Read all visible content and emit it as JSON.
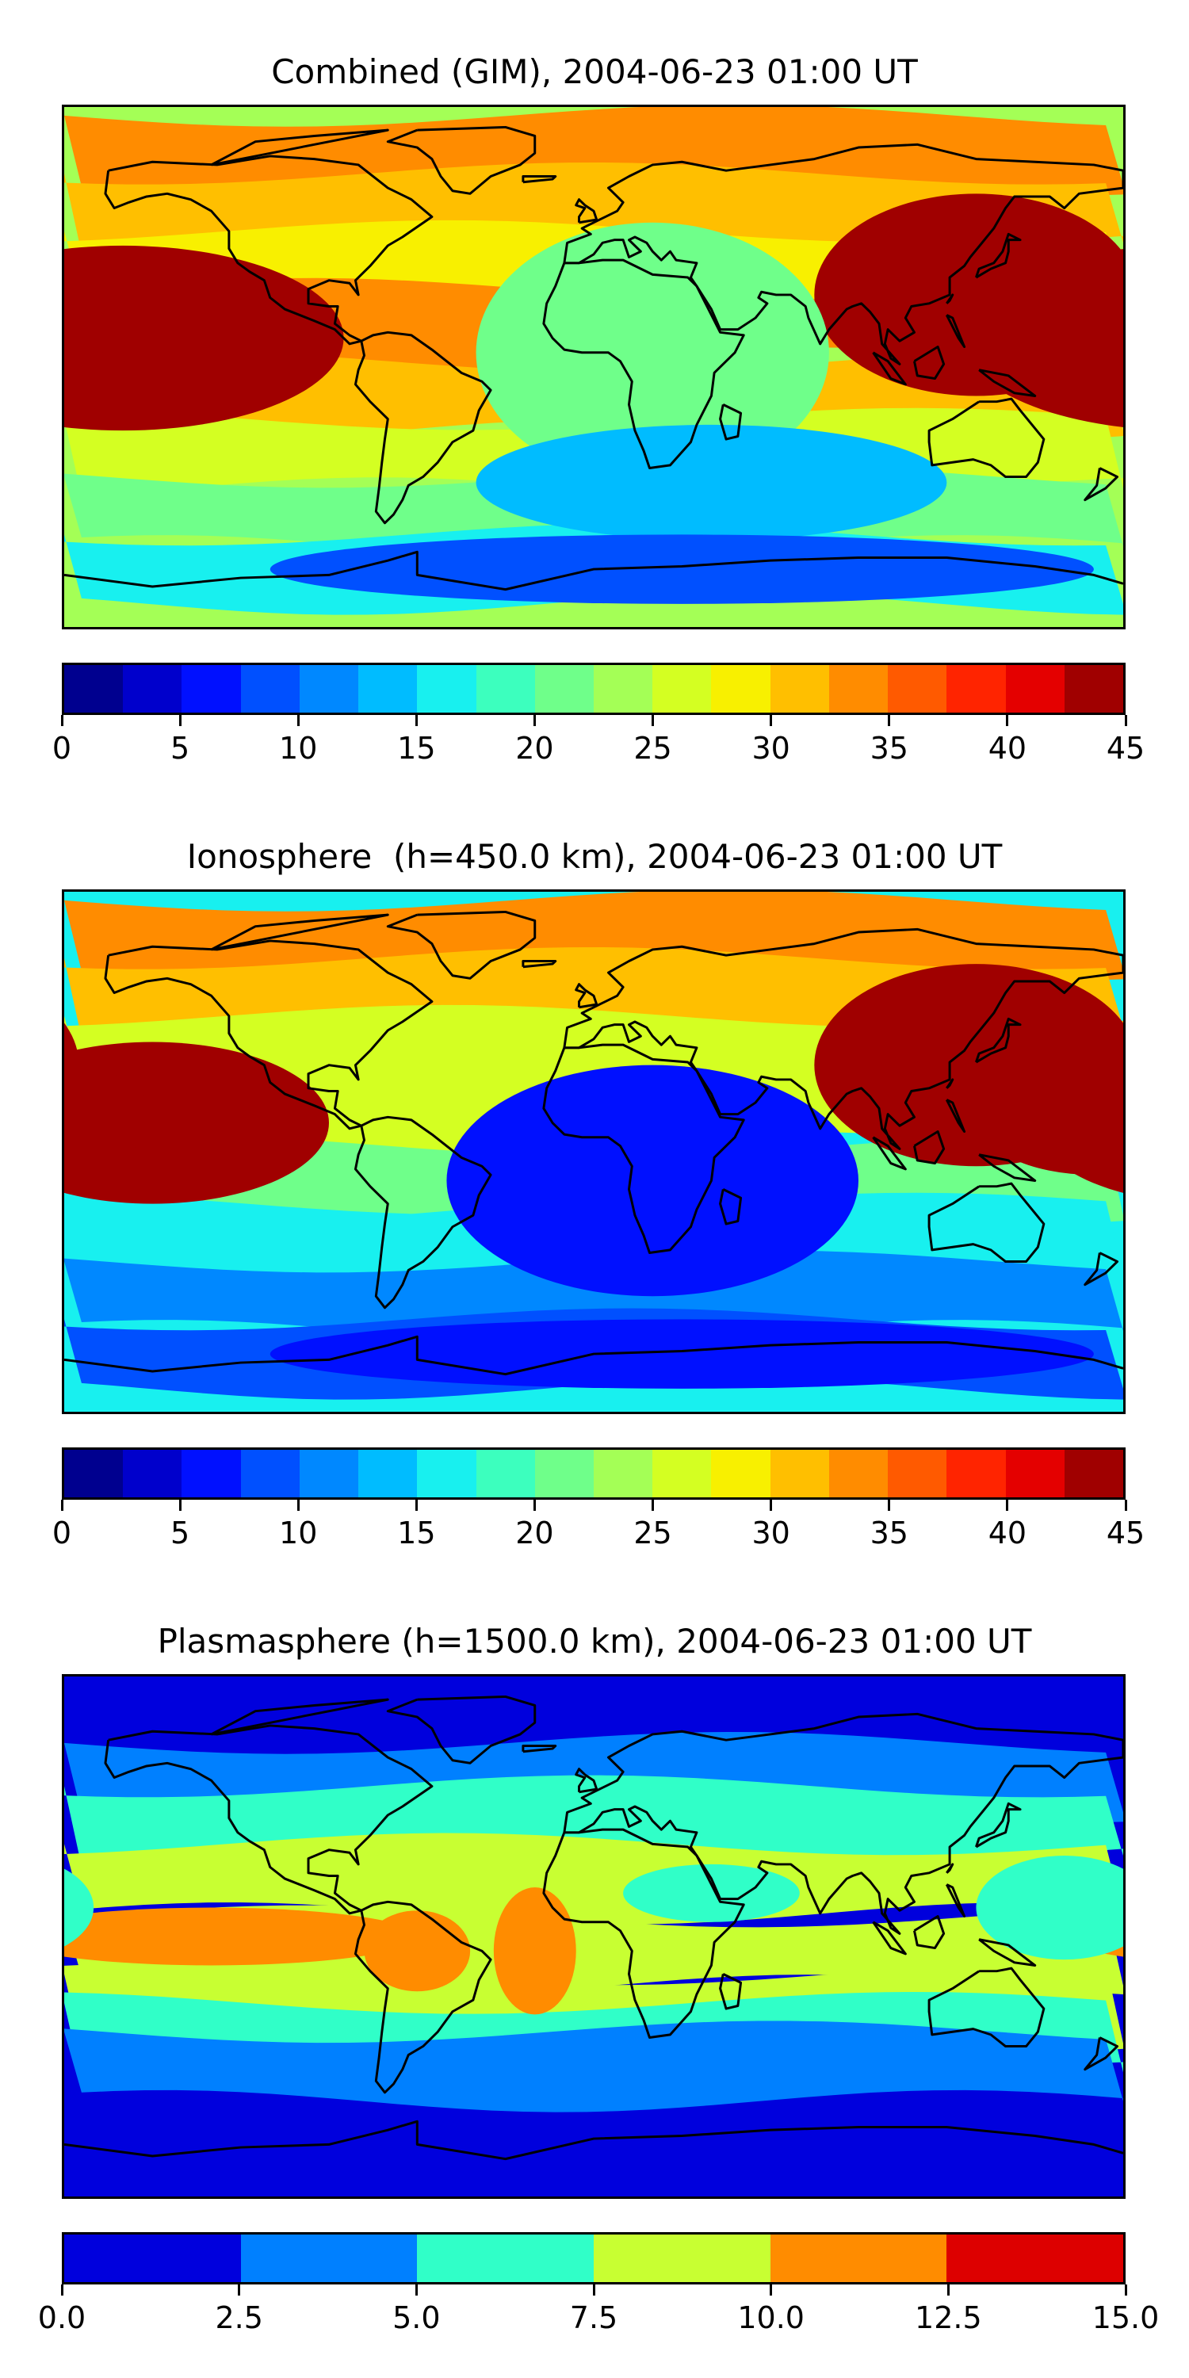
{
  "chart_data": [
    {
      "type": "heatmap",
      "title": "Combined (GIM), 2004-06-23 01:00 UT",
      "colorbar": {
        "ticks": [
          "0",
          "5",
          "10",
          "15",
          "20",
          "25",
          "30",
          "35",
          "40",
          "45"
        ],
        "vmin": 0,
        "vmax": 45,
        "step": 2.5,
        "colors": [
          "#00008f",
          "#0000cc",
          "#0010ff",
          "#0050ff",
          "#0088ff",
          "#00bcff",
          "#18f0ef",
          "#3cffbe",
          "#6fff8a",
          "#a4ff56",
          "#d4ff22",
          "#f8f000",
          "#ffbf00",
          "#ff8c00",
          "#ff5a00",
          "#ff2400",
          "#e40000",
          "#a00000"
        ]
      },
      "background_level": 9,
      "bands": [
        {
          "lat": 75,
          "level": 13
        },
        {
          "lat": 55,
          "level": 12
        },
        {
          "lat": 35,
          "level": 11
        },
        {
          "lat": 15,
          "level": 13
        },
        {
          "lat": -10,
          "level": 12
        },
        {
          "lat": -30,
          "level": 10
        },
        {
          "lat": -50,
          "level": 8
        },
        {
          "lat": -70,
          "level": 6
        }
      ],
      "blobs": [
        {
          "lon": -160,
          "lat": 10,
          "rlon": 75,
          "rlat": 32,
          "level": 30
        },
        {
          "lon": -150,
          "lat": 10,
          "rlon": 55,
          "rlat": 24,
          "level": 38
        },
        {
          "lon": -145,
          "lat": 8,
          "rlon": 28,
          "rlat": 12,
          "level": 42
        },
        {
          "lon": 165,
          "lat": 12,
          "rlon": 40,
          "rlat": 22,
          "level": 30
        },
        {
          "lon": 175,
          "lat": 12,
          "rlon": 22,
          "rlat": 12,
          "level": 37
        },
        {
          "lon": 130,
          "lat": 25,
          "rlon": 55,
          "rlat": 35,
          "level": 20
        },
        {
          "lon": 20,
          "lat": 5,
          "rlon": 60,
          "rlat": 45,
          "level": 8
        },
        {
          "lon": 40,
          "lat": -40,
          "rlon": 80,
          "rlat": 20,
          "level": 5
        },
        {
          "lon": 30,
          "lat": -70,
          "rlon": 140,
          "rlat": 12,
          "level": 3
        }
      ]
    },
    {
      "type": "heatmap",
      "title": "Ionosphere  (h=450.0 km), 2004-06-23 01:00 UT",
      "colorbar": {
        "ticks": [
          "0",
          "5",
          "10",
          "15",
          "20",
          "25",
          "30",
          "35",
          "40",
          "45"
        ],
        "vmin": 0,
        "vmax": 45,
        "step": 2.5,
        "colors": [
          "#00008f",
          "#0000cc",
          "#0010ff",
          "#0050ff",
          "#0088ff",
          "#00bcff",
          "#18f0ef",
          "#3cffbe",
          "#6fff8a",
          "#a4ff56",
          "#d4ff22",
          "#f8f000",
          "#ffbf00",
          "#ff8c00",
          "#ff5a00",
          "#ff2400",
          "#e40000",
          "#a00000"
        ]
      },
      "background_level": 6,
      "bands": [
        {
          "lat": 75,
          "level": 13
        },
        {
          "lat": 55,
          "level": 12
        },
        {
          "lat": 35,
          "level": 10
        },
        {
          "lat": 15,
          "level": 10
        },
        {
          "lat": -10,
          "level": 8
        },
        {
          "lat": -30,
          "level": 6
        },
        {
          "lat": -50,
          "level": 4
        },
        {
          "lat": -70,
          "level": 3
        }
      ],
      "blobs": [
        {
          "lon": -150,
          "lat": 10,
          "rlon": 60,
          "rlat": 28,
          "level": 24
        },
        {
          "lon": -145,
          "lat": 12,
          "rlon": 40,
          "rlat": 16,
          "level": 28
        },
        {
          "lon": -145,
          "lat": 14,
          "rlon": 14,
          "rlat": 7,
          "level": 34
        },
        {
          "lon": 170,
          "lat": 12,
          "rlon": 40,
          "rlat": 20,
          "level": 24
        },
        {
          "lon": 130,
          "lat": 30,
          "rlon": 55,
          "rlat": 35,
          "level": 18
        },
        {
          "lon": 20,
          "lat": -10,
          "rlon": 70,
          "rlat": 40,
          "level": 2
        },
        {
          "lon": 30,
          "lat": -70,
          "rlon": 140,
          "rlat": 12,
          "level": 2
        }
      ]
    },
    {
      "type": "heatmap",
      "title": "Plasmasphere (h=1500.0 km), 2004-06-23 01:00 UT",
      "colorbar": {
        "ticks": [
          "0.0",
          "2.5",
          "5.0",
          "7.5",
          "10.0",
          "12.5",
          "15.0"
        ],
        "vmin": 0,
        "vmax": 15,
        "step": 2.5,
        "colors": [
          "#0000dd",
          "#0080ff",
          "#30ffc8",
          "#c8ff32",
          "#ff8c00",
          "#dd0000"
        ]
      },
      "background_level": 0,
      "bands": [
        {
          "lat": 55,
          "level": 1
        },
        {
          "lat": 40,
          "level": 2
        },
        {
          "lat": 20,
          "level": 3
        },
        {
          "lat": -5,
          "level": 3
        },
        {
          "lat": -25,
          "level": 3
        },
        {
          "lat": -35,
          "level": 2
        },
        {
          "lat": -45,
          "level": 1
        }
      ],
      "blobs": [
        {
          "lon": -130,
          "lat": 0,
          "rlon": 70,
          "rlat": 10,
          "level": 4
        },
        {
          "lon": -60,
          "lat": -5,
          "rlon": 18,
          "rlat": 14,
          "level": 4
        },
        {
          "lon": -20,
          "lat": -5,
          "rlon": 14,
          "rlat": 22,
          "level": 4
        },
        {
          "lon": 40,
          "lat": 15,
          "rlon": 30,
          "rlat": 10,
          "level": 2
        },
        {
          "lon": 160,
          "lat": 10,
          "rlon": 30,
          "rlat": 18,
          "level": 2
        }
      ]
    }
  ]
}
